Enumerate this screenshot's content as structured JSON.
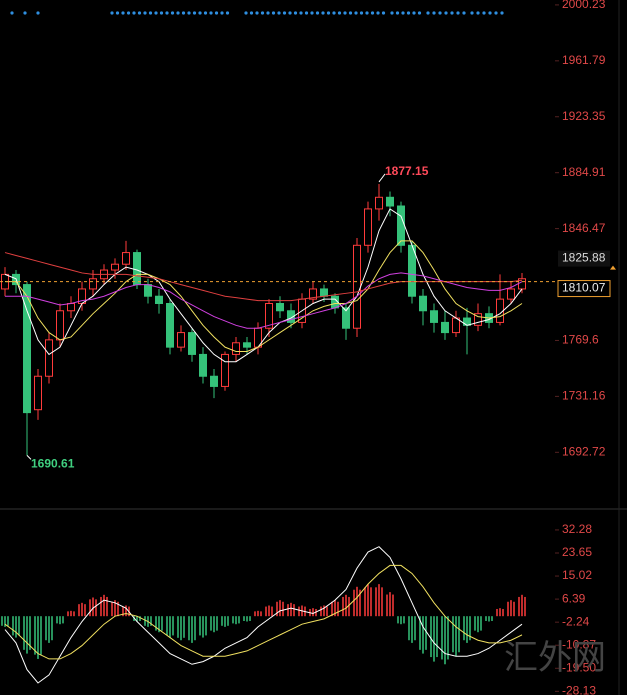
{
  "chart_data": [
    {
      "type": "candlestick",
      "open": [
        1805,
        1815,
        1808,
        1722,
        1745,
        1770,
        1790,
        1795,
        1805,
        1812,
        1818,
        1822,
        1830,
        1808,
        1800,
        1795,
        1765,
        1775,
        1760,
        1745,
        1738,
        1760,
        1768,
        1765,
        1778,
        1795,
        1790,
        1782,
        1798,
        1805,
        1800,
        1792,
        1778,
        1835,
        1860,
        1868,
        1862,
        1835,
        1800,
        1790,
        1782,
        1775,
        1785,
        1780,
        1788,
        1782,
        1798,
        1805
      ],
      "high": [
        1820,
        1818,
        1810,
        1750,
        1775,
        1795,
        1800,
        1810,
        1818,
        1822,
        1826,
        1838,
        1832,
        1812,
        1805,
        1798,
        1780,
        1778,
        1765,
        1750,
        1762,
        1772,
        1772,
        1782,
        1798,
        1800,
        1795,
        1802,
        1810,
        1808,
        1802,
        1795,
        1840,
        1865,
        1877.15,
        1872,
        1865,
        1838,
        1805,
        1795,
        1790,
        1790,
        1792,
        1795,
        1793,
        1815,
        1810,
        1816
      ],
      "low": [
        1800,
        1802,
        1690.61,
        1715,
        1740,
        1765,
        1785,
        1790,
        1800,
        1808,
        1812,
        1818,
        1805,
        1795,
        1788,
        1760,
        1762,
        1755,
        1740,
        1730,
        1735,
        1755,
        1760,
        1760,
        1772,
        1785,
        1778,
        1778,
        1795,
        1796,
        1788,
        1770,
        1772,
        1830,
        1852,
        1855,
        1830,
        1795,
        1780,
        1775,
        1770,
        1772,
        1760,
        1776,
        1778,
        1780,
        1795,
        1802
      ],
      "close": [
        1815,
        1808,
        1720,
        1745,
        1770,
        1790,
        1795,
        1805,
        1812,
        1818,
        1822,
        1830,
        1808,
        1800,
        1795,
        1765,
        1775,
        1760,
        1745,
        1738,
        1760,
        1768,
        1765,
        1778,
        1795,
        1790,
        1782,
        1798,
        1805,
        1800,
        1792,
        1778,
        1835,
        1860,
        1868,
        1862,
        1835,
        1800,
        1790,
        1782,
        1775,
        1785,
        1780,
        1788,
        1782,
        1798,
        1805,
        1812
      ],
      "up_color": "#ff3b3b",
      "down_color": "#35c27a",
      "moving_averages": [
        {
          "color": "#ffffff",
          "values": [
            1815,
            1812,
            1790,
            1770,
            1760,
            1765,
            1780,
            1795,
            1800,
            1808,
            1815,
            1820,
            1818,
            1815,
            1810,
            1798,
            1788,
            1778,
            1768,
            1760,
            1755,
            1755,
            1760,
            1765,
            1775,
            1782,
            1785,
            1790,
            1795,
            1798,
            1798,
            1790,
            1800,
            1820,
            1845,
            1860,
            1855,
            1835,
            1815,
            1800,
            1790,
            1785,
            1780,
            1782,
            1784,
            1788,
            1795,
            1805
          ]
        },
        {
          "color": "#f0e060",
          "values": [
            1810,
            1810,
            1800,
            1785,
            1775,
            1770,
            1772,
            1780,
            1788,
            1795,
            1802,
            1810,
            1815,
            1815,
            1812,
            1808,
            1800,
            1790,
            1780,
            1772,
            1765,
            1762,
            1762,
            1765,
            1770,
            1775,
            1780,
            1785,
            1790,
            1793,
            1795,
            1795,
            1797,
            1805,
            1818,
            1830,
            1838,
            1838,
            1830,
            1818,
            1805,
            1795,
            1790,
            1786,
            1785,
            1786,
            1790,
            1795
          ]
        },
        {
          "color": "#d040e0",
          "values": [
            1800,
            1800,
            1800,
            1798,
            1796,
            1794,
            1795,
            1797,
            1798,
            1800,
            1803,
            1806,
            1808,
            1808,
            1806,
            1803,
            1798,
            1794,
            1790,
            1786,
            1783,
            1780,
            1778,
            1778,
            1780,
            1782,
            1784,
            1786,
            1788,
            1790,
            1792,
            1795,
            1800,
            1807,
            1812,
            1815,
            1816,
            1815,
            1814,
            1812,
            1810,
            1808,
            1806,
            1805,
            1804,
            1804,
            1806,
            1810
          ]
        },
        {
          "color": "#e04040",
          "values": [
            1830,
            1828,
            1826,
            1824,
            1822,
            1820,
            1818,
            1816,
            1815,
            1815,
            1815,
            1815,
            1814,
            1813,
            1812,
            1810,
            1808,
            1806,
            1804,
            1802,
            1800,
            1799,
            1798,
            1797,
            1797,
            1797,
            1797,
            1798,
            1799,
            1800,
            1801,
            1802,
            1803,
            1805,
            1807,
            1809,
            1810,
            1810,
            1810,
            1810,
            1810,
            1810,
            1810,
            1810,
            1810,
            1810,
            1810,
            1811
          ]
        }
      ],
      "ylim": [
        1656.5,
        2003.6
      ],
      "yticks": [
        2000.23,
        1961.79,
        1923.35,
        1884.91,
        1846.47,
        1769.6,
        1731.16,
        1692.72
      ],
      "marker_price": 1825.88,
      "current_price": 1810.07,
      "current_color": "#f0a030"
    },
    {
      "type": "macd",
      "histogram": [
        -4,
        -8,
        -14,
        -16,
        -10,
        -3,
        2,
        5,
        7,
        8,
        6,
        4,
        -2,
        -4,
        -6,
        -8,
        -9,
        -10,
        -8,
        -6,
        -4,
        -3,
        -2,
        2,
        4,
        6,
        5,
        4,
        3,
        4,
        6,
        8,
        11,
        12,
        12,
        9,
        -3,
        -10,
        -14,
        -17,
        -18,
        -15,
        -10,
        -6,
        -2,
        3,
        6,
        8
      ],
      "dif": [
        -5,
        -10,
        -20,
        -25,
        -22,
        -15,
        -8,
        -2,
        3,
        6,
        5,
        3,
        -2,
        -6,
        -10,
        -14,
        -16,
        -18,
        -17,
        -15,
        -12,
        -10,
        -8,
        -4,
        -1,
        2,
        3,
        2,
        1,
        3,
        6,
        10,
        18,
        24,
        26,
        22,
        14,
        5,
        -4,
        -10,
        -14,
        -15,
        -15,
        -14,
        -12,
        -9,
        -6,
        -3
      ],
      "dea": [
        -3,
        -6,
        -10,
        -14,
        -16,
        -16,
        -14,
        -11,
        -7,
        -3,
        0,
        1,
        0,
        -2,
        -5,
        -8,
        -11,
        -13,
        -15,
        -15,
        -15,
        -14,
        -13,
        -11,
        -9,
        -7,
        -5,
        -3,
        -2,
        -1,
        1,
        3,
        7,
        12,
        16,
        19,
        19,
        16,
        11,
        5,
        0,
        -4,
        -7,
        -9,
        -10,
        -10,
        -9,
        -7
      ],
      "dif_color": "#ffffff",
      "dea_color": "#f0e060",
      "up_color": "#ff3b3b",
      "down_color": "#35c27a",
      "ylim": [
        -29.5,
        36
      ],
      "yticks": [
        32.28,
        23.65,
        15.02,
        6.39,
        -2.24,
        -10.87,
        {
          "value": -19.5,
          "label": "-19.50"
        },
        -28.13
      ]
    }
  ],
  "watermark": "汇外网"
}
